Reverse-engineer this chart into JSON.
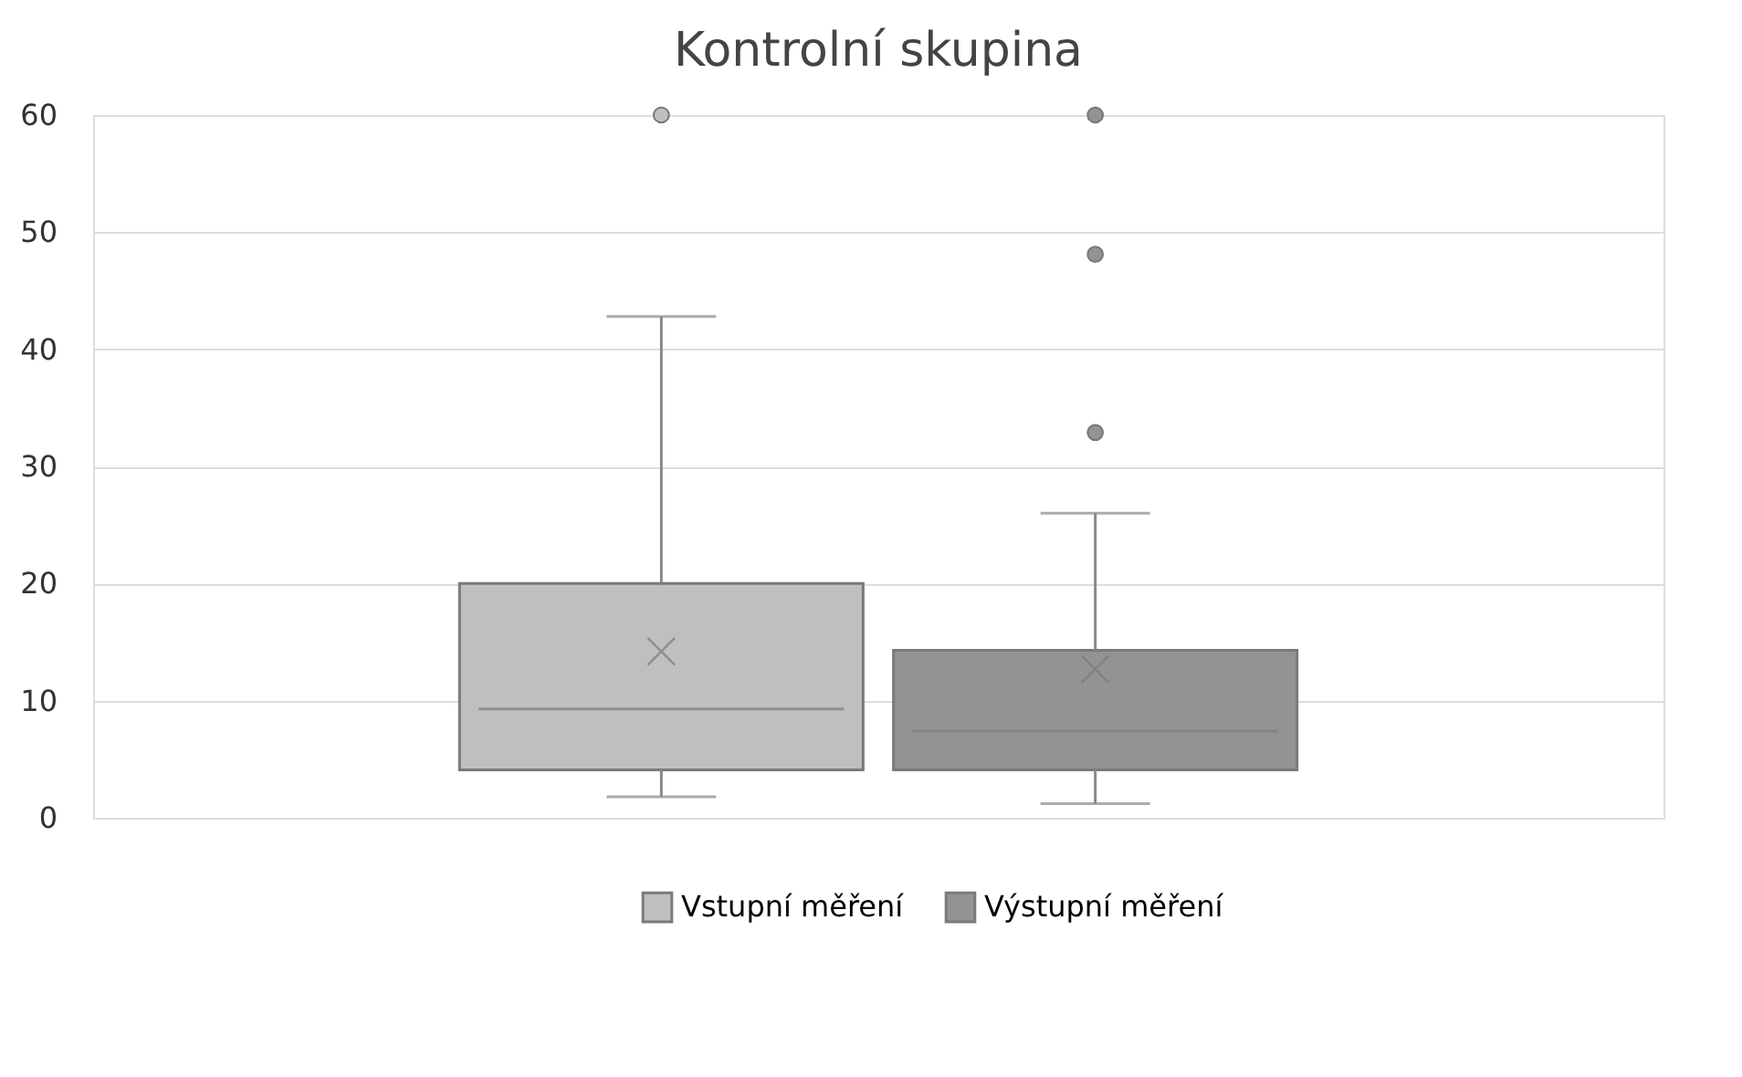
{
  "chart_data": {
    "type": "box",
    "title": "Kontrolní skupina",
    "categories": [
      null
    ],
    "series": [
      {
        "name": "Vstupní měření",
        "color": "#bfbfbf",
        "boxes": [
          {
            "low": 1.8,
            "q1": 4.1,
            "median": 9.3,
            "q3": 20.0,
            "high": 42.8,
            "mean": 14.2,
            "outliers": [
              60
            ]
          }
        ]
      },
      {
        "name": "Výstupní měření",
        "color": "#939393",
        "boxes": [
          {
            "low": 1.2,
            "q1": 4.1,
            "median": 7.4,
            "q3": 14.3,
            "high": 26.0,
            "mean": 12.7,
            "outliers": [
              60,
              48.1,
              32.9
            ]
          }
        ]
      }
    ],
    "ylim": [
      0,
      60
    ],
    "yticks": [
      0,
      10,
      20,
      30,
      40,
      50,
      60
    ],
    "grid": "y",
    "legend": "bottom",
    "marker": "cross"
  }
}
